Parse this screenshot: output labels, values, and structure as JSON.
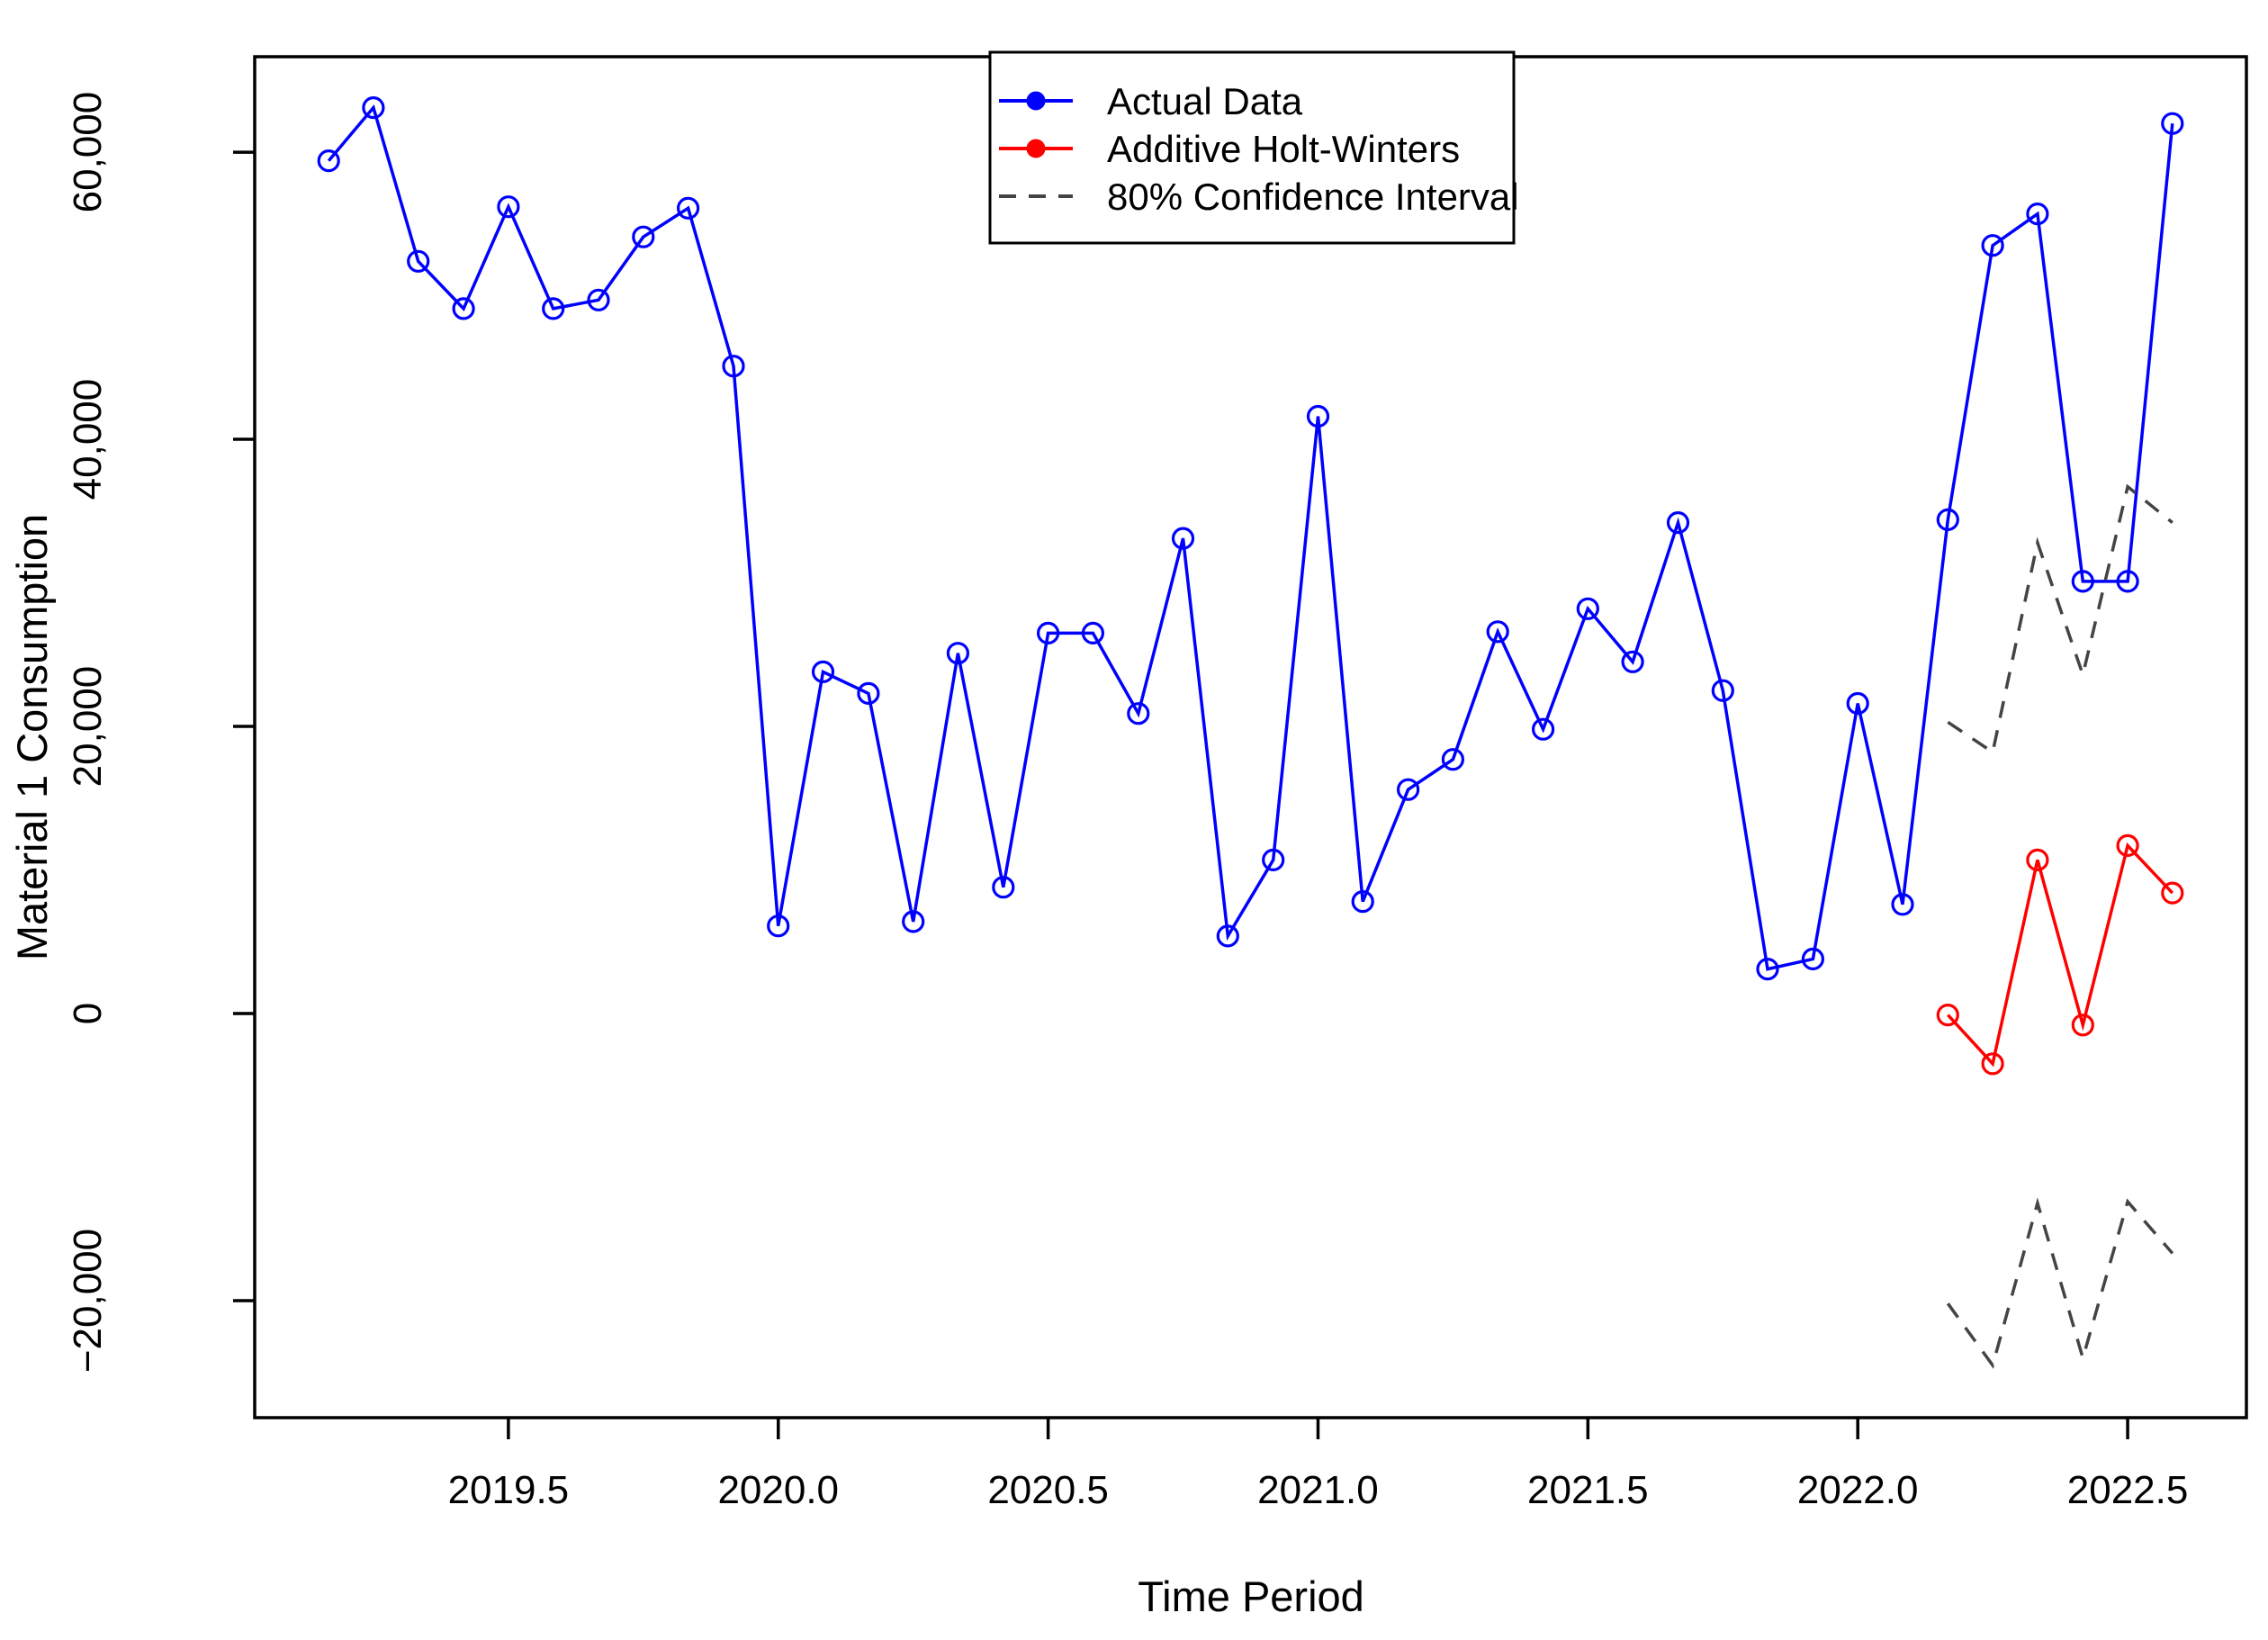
{
  "chart_data": {
    "type": "line",
    "title": "",
    "xlabel": "Time Period",
    "ylabel": "Material 1 Consumption",
    "xlim": [
      2019.03,
      2022.72
    ],
    "ylim": [
      -28150,
      66650
    ],
    "grid": false,
    "background": "#ffffff",
    "legend_position": "top-center",
    "x_tick_values": [
      2019.5,
      2020.0,
      2020.5,
      2021.0,
      2021.5,
      2022.0,
      2022.5
    ],
    "x_tick_labels": [
      "2019.5",
      "2020.0",
      "2020.5",
      "2021.0",
      "2021.5",
      "2022.0",
      "2022.5"
    ],
    "y_tick_values": [
      -20000,
      0,
      20000,
      40000,
      60000
    ],
    "y_tick_labels": [
      "−20,000",
      "0",
      "20,000",
      "40,000",
      "60,000"
    ],
    "series": [
      {
        "name": "Actual Data",
        "color": "#0000FF",
        "style": "solid",
        "marker": "open-circle",
        "x": [
          2019.167,
          2019.25,
          2019.333,
          2019.417,
          2019.5,
          2019.583,
          2019.667,
          2019.75,
          2019.833,
          2019.917,
          2020.0,
          2020.083,
          2020.167,
          2020.25,
          2020.333,
          2020.417,
          2020.5,
          2020.583,
          2020.667,
          2020.75,
          2020.833,
          2020.917,
          2021.0,
          2021.083,
          2021.167,
          2021.25,
          2021.333,
          2021.417,
          2021.5,
          2021.583,
          2021.667,
          2021.75,
          2021.833,
          2021.917,
          2022.0,
          2022.083,
          2022.167,
          2022.25,
          2022.333,
          2022.417,
          2022.5,
          2022.583
        ],
        "values": [
          59400,
          63100,
          52400,
          49100,
          56200,
          49100,
          49700,
          54100,
          56100,
          45100,
          6100,
          23800,
          22300,
          6400,
          25100,
          8800,
          26500,
          26500,
          20900,
          33100,
          5400,
          10700,
          41600,
          7800,
          15600,
          17700,
          26600,
          19800,
          28200,
          24500,
          34200,
          22500,
          3100,
          3800,
          21600,
          7600,
          34400,
          53500,
          55700,
          30100,
          30100,
          62000
        ]
      },
      {
        "name": "Additive Holt-Winters",
        "color": "#FF0000",
        "style": "solid",
        "marker": "open-circle",
        "x": [
          2022.167,
          2022.25,
          2022.333,
          2022.417,
          2022.5,
          2022.583
        ],
        "values": [
          -100,
          -3500,
          10700,
          -800,
          11700,
          8400
        ]
      },
      {
        "name": "80% Confidence Interval (upper)",
        "color": "#444444",
        "style": "dashed",
        "marker": "none",
        "x": [
          2022.167,
          2022.25,
          2022.333,
          2022.417,
          2022.5,
          2022.583
        ],
        "values": [
          20300,
          18200,
          32800,
          23600,
          36700,
          34200
        ]
      },
      {
        "name": "80% Confidence Interval (lower)",
        "color": "#444444",
        "style": "dashed",
        "marker": "none",
        "x": [
          2022.167,
          2022.25,
          2022.333,
          2022.417,
          2022.5,
          2022.583
        ],
        "values": [
          -20200,
          -24500,
          -13200,
          -24000,
          -13100,
          -16700
        ]
      }
    ]
  },
  "legend": {
    "items": [
      {
        "label": "Actual Data",
        "color": "#0000FF",
        "dashed": false,
        "marker": true
      },
      {
        "label": "Additive Holt-Winters",
        "color": "#FF0000",
        "dashed": false,
        "marker": true
      },
      {
        "label": "80% Confidence Interval",
        "color": "#444444",
        "dashed": true,
        "marker": false
      }
    ]
  },
  "colors": {
    "actual": "#0000FF",
    "forecast": "#FF0000",
    "confidence": "#444444",
    "axis": "#000000",
    "background": "#ffffff"
  }
}
